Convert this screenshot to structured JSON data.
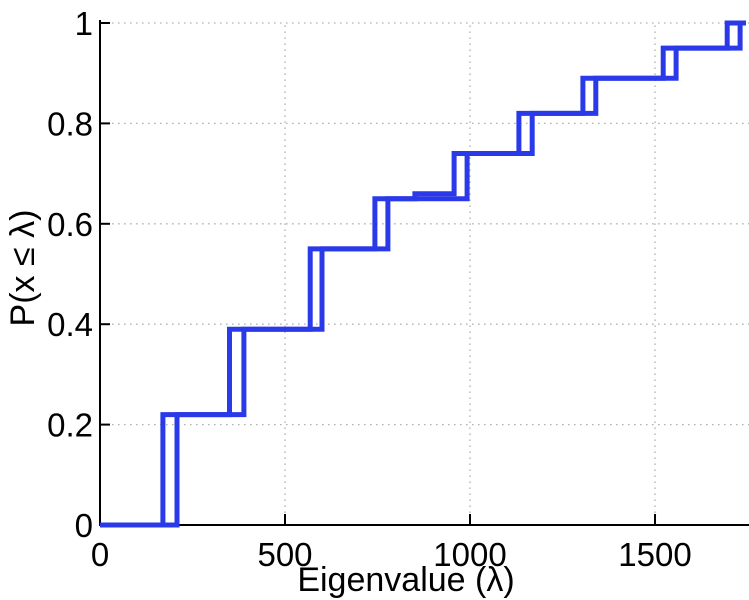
{
  "figure": {
    "background": "#ffffff"
  },
  "chart_data": {
    "type": "step",
    "subtype": "empirical-cdf",
    "title": "",
    "xlabel": "Eigenvalue (λ)",
    "ylabel": "P(x ≤ λ)",
    "xlim": [
      0,
      1754
    ],
    "ylim": [
      0,
      1
    ],
    "xticks": {
      "values": [
        0,
        500,
        1000,
        1500
      ],
      "labels": [
        "0",
        "500",
        "1000",
        "1500"
      ]
    },
    "yticks": {
      "values": [
        0,
        0.2,
        0.4,
        0.6,
        0.8,
        1
      ],
      "labels": [
        "0",
        "0.2",
        "0.4",
        "0.6",
        "0.8",
        "1"
      ]
    },
    "grid": {
      "visible": true,
      "style": "dotted",
      "color": "#b3b3b3"
    },
    "axes_color": "#000000",
    "line": {
      "color": "#2a3ae8",
      "width": 5
    },
    "legend": {
      "visible": false
    },
    "series": [
      {
        "name": "ecdf-step-lower",
        "start": [
          0,
          0
        ],
        "jumps": [
          [
            170,
            0.22
          ],
          [
            350,
            0.39
          ],
          [
            568,
            0.55
          ],
          [
            743,
            0.65
          ],
          [
            851,
            0.66
          ],
          [
            957,
            0.74
          ],
          [
            1132,
            0.82
          ],
          [
            1305,
            0.89
          ],
          [
            1522,
            0.95
          ],
          [
            1695,
            1.0
          ]
        ]
      },
      {
        "name": "ecdf-step-upper",
        "start": [
          0,
          0
        ],
        "jumps": [
          [
            208,
            0.22
          ],
          [
            389,
            0.39
          ],
          [
            600,
            0.55
          ],
          [
            778,
            0.65
          ],
          [
            992,
            0.74
          ],
          [
            1168,
            0.82
          ],
          [
            1340,
            0.89
          ],
          [
            1557,
            0.95
          ],
          [
            1730,
            1.0
          ]
        ]
      }
    ]
  }
}
